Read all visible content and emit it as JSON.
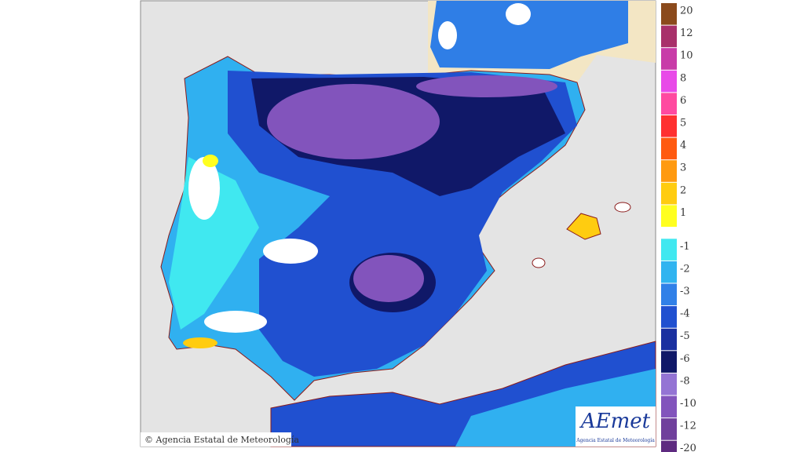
{
  "map": {
    "copyright": "© Agencia Estatal de Meteorología",
    "logo": {
      "name": "AEmet",
      "subtitle": "Agencia Estatal de Meteorología"
    }
  },
  "legend": {
    "positive": [
      {
        "value": 20,
        "color": "#8b4a1c"
      },
      {
        "value": 12,
        "color": "#a8306a"
      },
      {
        "value": 10,
        "color": "#c83ca8"
      },
      {
        "value": 8,
        "color": "#e84ae8"
      },
      {
        "value": 6,
        "color": "#ff4aa0"
      },
      {
        "value": 5,
        "color": "#ff3030"
      },
      {
        "value": 4,
        "color": "#ff5a10"
      },
      {
        "value": 3,
        "color": "#ff9a10"
      },
      {
        "value": 2,
        "color": "#ffcc10"
      },
      {
        "value": 1,
        "color": "#ffff20"
      }
    ],
    "negative": [
      {
        "value": -1,
        "color": "#40e8f0"
      },
      {
        "value": -2,
        "color": "#30b4f0"
      },
      {
        "value": -3,
        "color": "#3080e8"
      },
      {
        "value": -4,
        "color": "#2050d0"
      },
      {
        "value": -5,
        "color": "#1a30a0"
      },
      {
        "value": -6,
        "color": "#101868"
      },
      {
        "value": -8,
        "color": "#9474d4"
      },
      {
        "value": -10,
        "color": "#8254bc"
      },
      {
        "value": -12,
        "color": "#70409c"
      },
      {
        "value": -20,
        "color": "#5e2a80"
      }
    ]
  }
}
